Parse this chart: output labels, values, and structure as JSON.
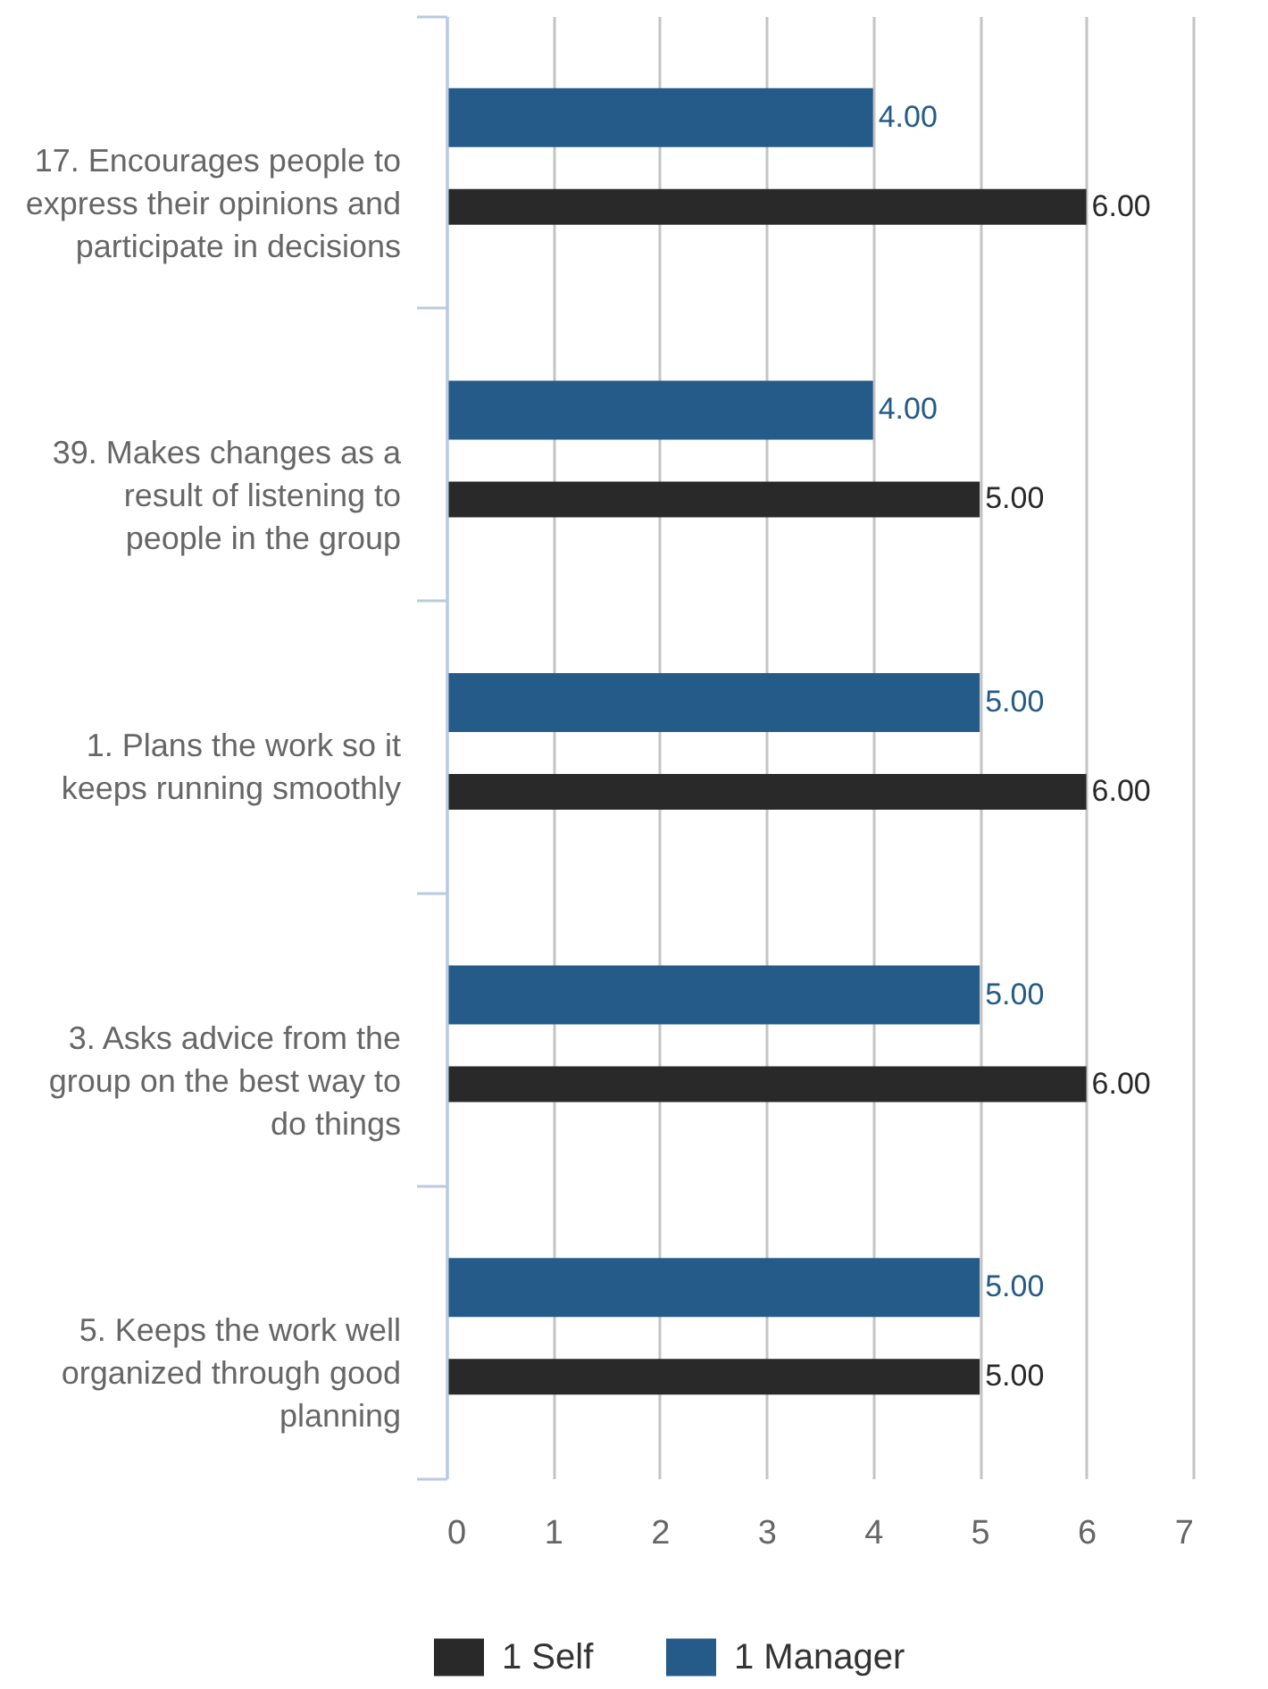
{
  "chart_data": {
    "type": "bar",
    "orientation": "horizontal",
    "categories": [
      "17. Encourages people to express their opinions and participate in decisions",
      "39. Makes changes as a result of listening to people in the group",
      "1. Plans the work so it keeps running smoothly",
      "3. Asks advice from the group on the best way to do things",
      "5. Keeps the work well organized through good planning"
    ],
    "series": [
      {
        "name": "1 Self",
        "color": "#292929",
        "values": [
          6,
          5,
          6,
          6,
          5
        ],
        "value_labels": [
          "6.00",
          "5.00",
          "6.00",
          "6.00",
          "5.00"
        ]
      },
      {
        "name": "1 Manager",
        "color": "#255b89",
        "values": [
          4,
          4,
          5,
          5,
          5
        ],
        "value_labels": [
          "4.00",
          "4.00",
          "5.00",
          "5.00",
          "5.00"
        ]
      }
    ],
    "xlim": [
      0,
      7
    ],
    "xticks": [
      0,
      1,
      2,
      3,
      4,
      5,
      6,
      7
    ],
    "grid": "x",
    "legend": "bottom"
  }
}
